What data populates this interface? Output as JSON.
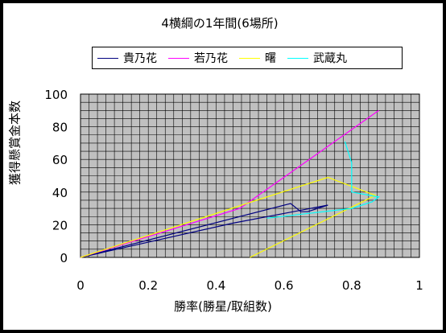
{
  "chart_data": {
    "type": "line",
    "title": "4横綱の1年間(6場所)",
    "xlabel": "勝率(勝星/取組数)",
    "ylabel": "獲得懸賞金本数",
    "xlim": [
      0,
      1
    ],
    "ylim": [
      0,
      100
    ],
    "xticks": [
      "0",
      "0.2",
      "0.4",
      "0.6",
      "0.8",
      "1"
    ],
    "yticks": [
      "0",
      "20",
      "40",
      "60",
      "80",
      "100"
    ],
    "grid": true,
    "legend_position": "top",
    "series": [
      {
        "name": "貴乃花",
        "color": "#000080",
        "points": [
          [
            0,
            0
          ],
          [
            0.62,
            33
          ],
          [
            0.65,
            28
          ],
          [
            0.67,
            28
          ],
          [
            0.73,
            32
          ],
          [
            0.45,
            21
          ],
          [
            0,
            0
          ]
        ]
      },
      {
        "name": "若乃花",
        "color": "#ff00ff",
        "points": [
          [
            0,
            0
          ],
          [
            0.47,
            30
          ],
          [
            0.88,
            90
          ]
        ]
      },
      {
        "name": "曙",
        "color": "#ffff00",
        "points": [
          [
            0,
            0
          ],
          [
            0.52,
            35
          ],
          [
            0.73,
            49
          ],
          [
            0.87,
            38
          ],
          [
            0.5,
            0
          ]
        ]
      },
      {
        "name": "武蔵丸",
        "color": "#00ffff",
        "points": [
          [
            0.78,
            71
          ],
          [
            0.8,
            58
          ],
          [
            0.8,
            40
          ],
          [
            0.88,
            37
          ],
          [
            0.86,
            34
          ],
          [
            0.8,
            30
          ],
          [
            0.55,
            24
          ]
        ]
      }
    ]
  }
}
